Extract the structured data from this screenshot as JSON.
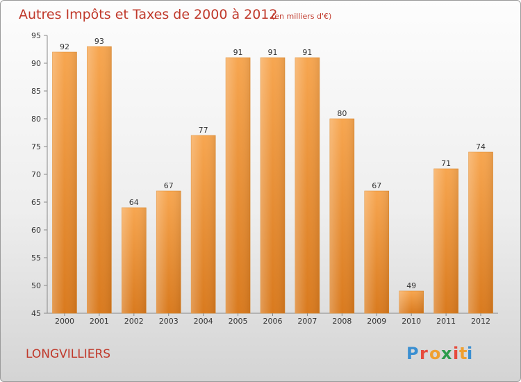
{
  "chart_data": {
    "type": "bar",
    "title": "Autres Impôts et Taxes de 2000 à 2012",
    "subtitle": "(en milliers d'€)",
    "categories": [
      "2000",
      "2001",
      "2002",
      "2003",
      "2004",
      "2005",
      "2006",
      "2007",
      "2008",
      "2009",
      "2010",
      "2011",
      "2012"
    ],
    "values": [
      92,
      93,
      64,
      67,
      77,
      91,
      91,
      91,
      80,
      67,
      49,
      71,
      74
    ],
    "ylim": [
      45,
      95
    ],
    "yticks": [
      45,
      50,
      55,
      60,
      65,
      70,
      75,
      80,
      85,
      90,
      95
    ],
    "grid": false,
    "bar_color": "#f39c3c"
  },
  "location": "LONGVILLIERS",
  "logo": {
    "letters": [
      "P",
      "r",
      "o",
      "x",
      "i",
      "t",
      "i"
    ],
    "colors": [
      "#3a8fd1",
      "#e64b3c",
      "#f0a030",
      "#2d9c4b",
      "#e64b3c",
      "#f0a030",
      "#3a8fd1"
    ]
  }
}
